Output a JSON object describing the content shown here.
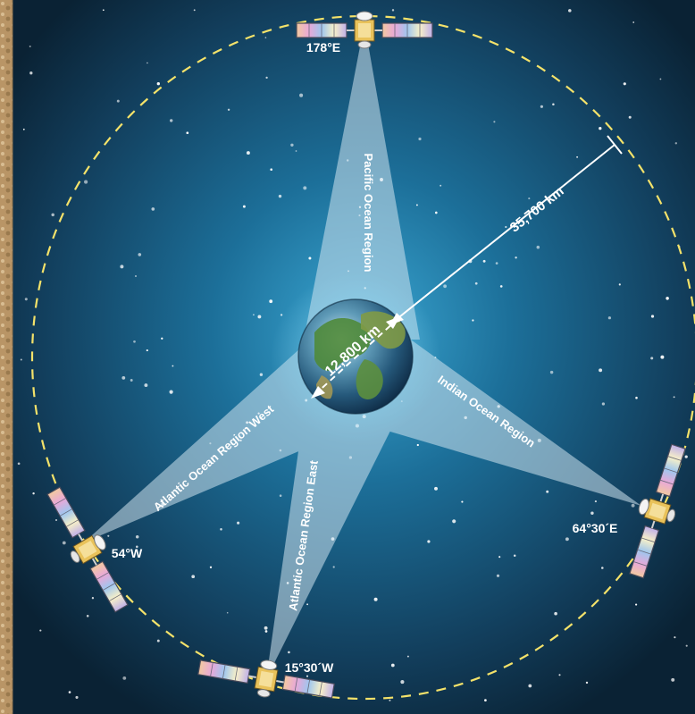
{
  "diagram": {
    "satellites": [
      {
        "id": "pacific",
        "position_label": "178°E"
      },
      {
        "id": "indian",
        "position_label": "64°30´E"
      },
      {
        "id": "aor-west",
        "position_label": "54°W"
      },
      {
        "id": "aor-east",
        "position_label": "15°30´W"
      }
    ],
    "coverage_regions": [
      {
        "id": "pacific",
        "label": "Pacific Ocean Region"
      },
      {
        "id": "indian",
        "label": "Indian Ocean Region"
      },
      {
        "id": "aor-west",
        "label": "Atlantic Ocean Region West"
      },
      {
        "id": "aor-east",
        "label": "Atlantic Ocean Region East"
      }
    ],
    "orbit_radius_label": "35,700 km",
    "earth_diameter_label": "12,800 km"
  },
  "colors": {
    "background_center": "#2a8fbf",
    "background_edge": "#0b2336",
    "orbit_dash": "#f4e26a",
    "beam": "#cfe3ef",
    "left_edge_texture": "#c9a878"
  },
  "icons": {
    "satellite": "satellite-icon",
    "earth": "earth-globe-icon"
  }
}
